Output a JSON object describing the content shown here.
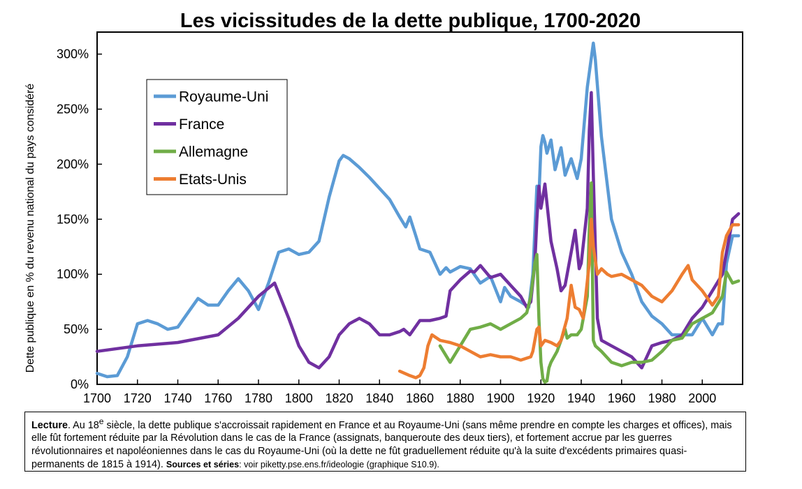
{
  "chart_data": {
    "type": "line",
    "title": "Les vicissitudes de la dette publique, 1700-2020",
    "xlabel": "",
    "ylabel": "Dette publique en % du revenu national du pays considéré",
    "xlim": [
      1700,
      2020
    ],
    "ylim": [
      0,
      320
    ],
    "x_ticks": [
      "1700",
      "1720",
      "1740",
      "1760",
      "1780",
      "1800",
      "1820",
      "1840",
      "1860",
      "1880",
      "1900",
      "1920",
      "1940",
      "1960",
      "1980",
      "2000"
    ],
    "y_ticks": [
      "0%",
      "50%",
      "100%",
      "150%",
      "200%",
      "250%",
      "300%"
    ],
    "grid": false,
    "legend_position": "top-left",
    "series": [
      {
        "name": "Royaume-Uni",
        "color": "#5b9bd5",
        "x": [
          1700,
          1705,
          1710,
          1715,
          1720,
          1725,
          1730,
          1735,
          1740,
          1745,
          1750,
          1755,
          1760,
          1765,
          1770,
          1775,
          1780,
          1785,
          1790,
          1795,
          1800,
          1805,
          1810,
          1815,
          1820,
          1822,
          1825,
          1830,
          1835,
          1840,
          1845,
          1850,
          1853,
          1855,
          1858,
          1860,
          1865,
          1870,
          1873,
          1875,
          1880,
          1885,
          1890,
          1895,
          1900,
          1902,
          1905,
          1910,
          1914,
          1916,
          1918,
          1919,
          1920,
          1921,
          1922,
          1923,
          1925,
          1927,
          1930,
          1932,
          1935,
          1938,
          1940,
          1943,
          1946,
          1947,
          1950,
          1955,
          1960,
          1965,
          1970,
          1975,
          1980,
          1985,
          1990,
          1995,
          2000,
          2005,
          2008,
          2010,
          2012,
          2015,
          2018
        ],
        "y": [
          10,
          7,
          8,
          25,
          55,
          58,
          55,
          50,
          52,
          65,
          78,
          72,
          72,
          85,
          96,
          85,
          68,
          92,
          120,
          123,
          118,
          120,
          130,
          170,
          203,
          208,
          205,
          197,
          188,
          178,
          168,
          152,
          143,
          152,
          135,
          123,
          120,
          100,
          106,
          102,
          107,
          105,
          92,
          98,
          75,
          88,
          80,
          75,
          70,
          100,
          180,
          170,
          216,
          226,
          220,
          210,
          222,
          195,
          215,
          190,
          205,
          187,
          205,
          270,
          310,
          295,
          225,
          150,
          120,
          100,
          75,
          62,
          55,
          45,
          45,
          45,
          60,
          45,
          55,
          55,
          110,
          135,
          135
        ]
      },
      {
        "name": "France",
        "color": "#7030a0",
        "x": [
          1700,
          1720,
          1740,
          1760,
          1770,
          1780,
          1788,
          1795,
          1800,
          1805,
          1810,
          1815,
          1820,
          1825,
          1830,
          1835,
          1840,
          1845,
          1850,
          1852,
          1855,
          1860,
          1865,
          1870,
          1873,
          1875,
          1880,
          1885,
          1887,
          1890,
          1895,
          1900,
          1905,
          1910,
          1913,
          1915,
          1917,
          1918,
          1919,
          1920,
          1921,
          1922,
          1925,
          1928,
          1930,
          1932,
          1935,
          1937,
          1939,
          1940,
          1943,
          1944,
          1945,
          1946,
          1948,
          1950,
          1955,
          1960,
          1965,
          1970,
          1975,
          1980,
          1985,
          1990,
          1995,
          2000,
          2005,
          2010,
          2015,
          2018
        ],
        "y": [
          30,
          35,
          38,
          45,
          60,
          80,
          92,
          60,
          35,
          20,
          15,
          25,
          45,
          55,
          60,
          55,
          45,
          45,
          48,
          50,
          45,
          58,
          58,
          60,
          62,
          85,
          95,
          103,
          102,
          108,
          97,
          100,
          90,
          80,
          70,
          75,
          110,
          150,
          180,
          160,
          170,
          182,
          130,
          105,
          85,
          90,
          120,
          140,
          105,
          110,
          160,
          230,
          265,
          190,
          60,
          40,
          35,
          30,
          25,
          15,
          35,
          38,
          40,
          45,
          60,
          70,
          85,
          100,
          150,
          155
        ]
      },
      {
        "name": "Allemagne",
        "color": "#70ad47",
        "x": [
          1870,
          1875,
          1880,
          1885,
          1890,
          1895,
          1900,
          1905,
          1910,
          1913,
          1915,
          1917,
          1918,
          1919,
          1920,
          1921,
          1922,
          1923,
          1924,
          1925,
          1928,
          1930,
          1932,
          1933,
          1935,
          1938,
          1940,
          1943,
          1944,
          1945,
          1946,
          1947,
          1950,
          1955,
          1960,
          1965,
          1970,
          1975,
          1980,
          1985,
          1990,
          1995,
          2000,
          2005,
          2010,
          2012,
          2015,
          2018
        ],
        "y": [
          35,
          20,
          35,
          50,
          52,
          55,
          50,
          55,
          60,
          65,
          80,
          110,
          118,
          60,
          20,
          5,
          2,
          3,
          15,
          20,
          30,
          40,
          50,
          42,
          45,
          45,
          50,
          80,
          140,
          183,
          40,
          35,
          30,
          20,
          17,
          20,
          20,
          22,
          30,
          40,
          42,
          55,
          60,
          65,
          80,
          102,
          92,
          94
        ]
      },
      {
        "name": "Etats-Unis",
        "color": "#ed7d31",
        "x": [
          1850,
          1855,
          1858,
          1860,
          1862,
          1864,
          1866,
          1870,
          1875,
          1880,
          1885,
          1890,
          1895,
          1900,
          1905,
          1910,
          1915,
          1916,
          1918,
          1919,
          1920,
          1922,
          1925,
          1928,
          1930,
          1933,
          1935,
          1937,
          1939,
          1941,
          1944,
          1945,
          1946,
          1948,
          1950,
          1953,
          1955,
          1960,
          1965,
          1970,
          1975,
          1980,
          1985,
          1990,
          1993,
          1995,
          2000,
          2005,
          2008,
          2010,
          2012,
          2015,
          2018
        ],
        "y": [
          12,
          8,
          6,
          8,
          15,
          35,
          45,
          40,
          38,
          35,
          30,
          25,
          27,
          25,
          25,
          22,
          25,
          30,
          50,
          52,
          35,
          40,
          38,
          35,
          40,
          60,
          90,
          70,
          68,
          60,
          110,
          150,
          125,
          100,
          105,
          100,
          98,
          100,
          95,
          90,
          80,
          75,
          85,
          100,
          108,
          95,
          85,
          72,
          80,
          120,
          135,
          145,
          145
        ]
      }
    ]
  },
  "legend": {
    "items": [
      {
        "label": "Royaume-Uni",
        "color": "#5b9bd5"
      },
      {
        "label": "France",
        "color": "#7030a0"
      },
      {
        "label": "Allemagne",
        "color": "#70ad47"
      },
      {
        "label": "Etats-Unis",
        "color": "#ed7d31"
      }
    ]
  },
  "caption": {
    "lead_bold": "Lecture",
    "text_1": ". Au 18",
    "sup": "e",
    "text_2": " siècle, la dette publique s'accroissait rapidement en France et au Royaume-Uni (sans même prendre en compte les charges et offices), mais elle fût fortement réduite par la Révolution dans le cas de la France (assignats, banqueroute des deux tiers), et fortement accrue par les guerres révolutionnaires et napoléoniennes dans le cas du Royaume-Uni (où la dette ne fût graduellement réduite qu'à la suite d'excédents primaires quasi-permanents de 1815 à 1914). ",
    "sources_bold": "Sources et séries",
    "sources_text": ": voir piketty.pse.ens.fr/ideologie (graphique S10.9)."
  }
}
